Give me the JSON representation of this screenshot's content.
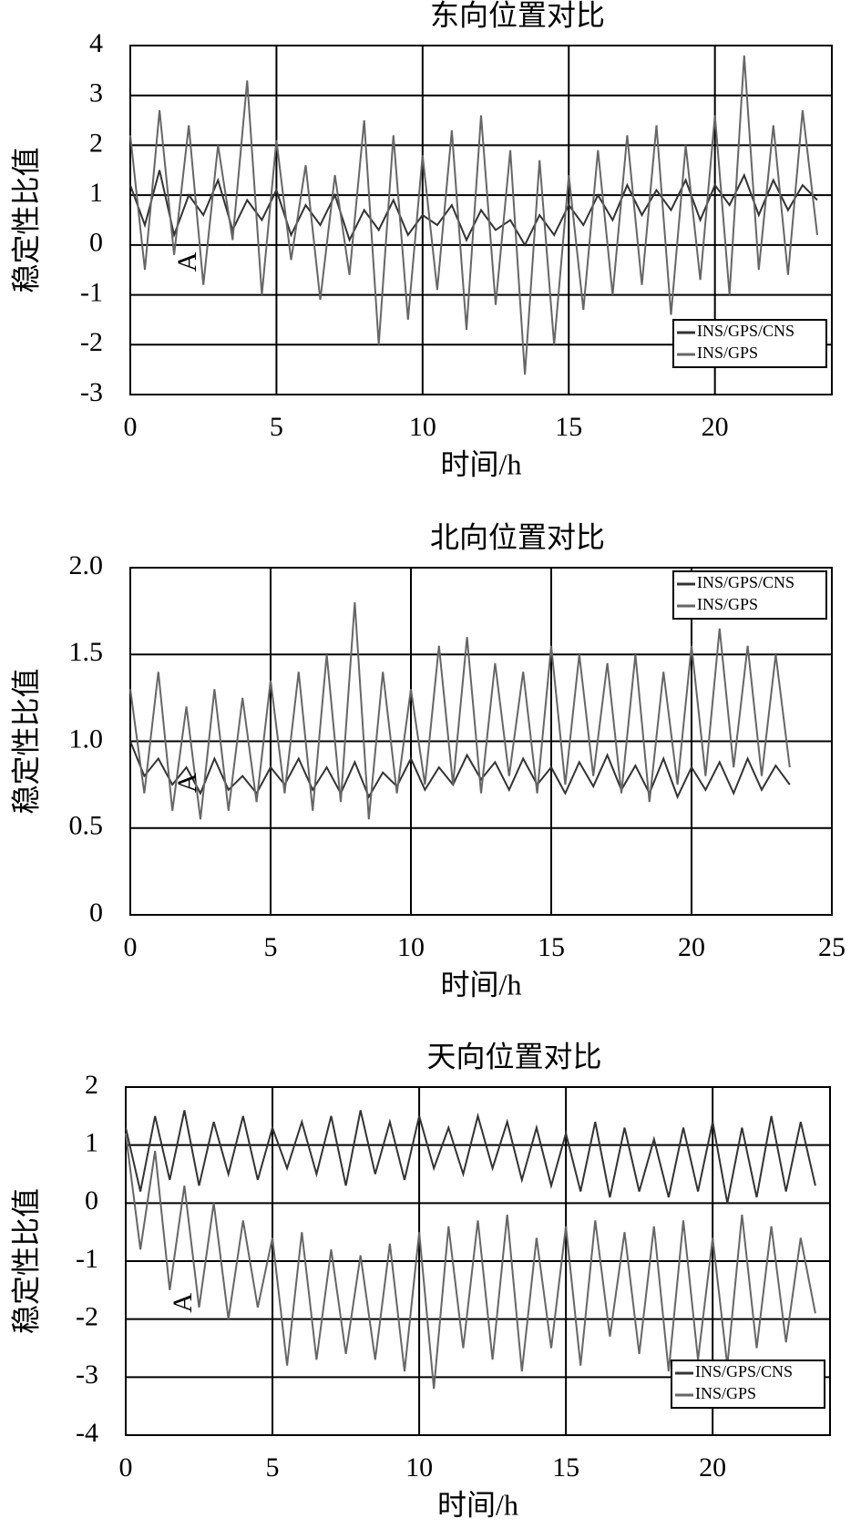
{
  "chart_data": [
    {
      "type": "line",
      "title": "东向位置对比",
      "xlabel": "时间/h",
      "ylabel": "稳定性比值",
      "annotation": "A",
      "xlim": [
        0,
        24
      ],
      "xticks": [
        0,
        5,
        10,
        15,
        20
      ],
      "ylim": [
        -3,
        4
      ],
      "yticks": [
        -3,
        -2,
        -1,
        0,
        1,
        2,
        3,
        4
      ],
      "grid": true,
      "legend": "lower right",
      "x": [
        0,
        0.5,
        1,
        1.5,
        2,
        2.5,
        3,
        3.5,
        4,
        4.5,
        5,
        5.5,
        6,
        6.5,
        7,
        7.5,
        8,
        8.5,
        9,
        9.5,
        10,
        10.5,
        11,
        11.5,
        12,
        12.5,
        13,
        13.5,
        14,
        14.5,
        15,
        15.5,
        16,
        16.5,
        17,
        17.5,
        18,
        18.5,
        19,
        19.5,
        20,
        20.5,
        21,
        21.5,
        22,
        22.5,
        23,
        23.5
      ],
      "series": [
        {
          "name": "INS/GPS/CNS",
          "color": "#333333",
          "values": [
            1.2,
            0.4,
            1.5,
            0.2,
            1.0,
            0.6,
            1.3,
            0.3,
            0.9,
            0.5,
            1.1,
            0.2,
            0.8,
            0.4,
            1.0,
            0.1,
            0.7,
            0.3,
            0.9,
            0.2,
            0.6,
            0.4,
            0.8,
            0.1,
            0.7,
            0.3,
            0.5,
            0.0,
            0.6,
            0.2,
            0.8,
            0.4,
            1.0,
            0.5,
            1.2,
            0.6,
            1.1,
            0.7,
            1.3,
            0.5,
            1.2,
            0.8,
            1.4,
            0.6,
            1.3,
            0.7,
            1.2,
            0.9
          ]
        },
        {
          "name": "INS/GPS",
          "color": "#666666",
          "values": [
            2.2,
            -0.5,
            2.7,
            -0.2,
            2.4,
            -0.8,
            2.0,
            0.1,
            3.3,
            -1.0,
            2.1,
            -0.3,
            1.6,
            -1.1,
            1.4,
            -0.6,
            2.5,
            -2.0,
            2.2,
            -1.5,
            1.8,
            -0.9,
            2.3,
            -1.7,
            2.6,
            -1.2,
            1.9,
            -2.6,
            1.7,
            -2.0,
            1.4,
            -1.3,
            1.9,
            -1.0,
            2.2,
            -0.8,
            2.4,
            -1.4,
            2.0,
            -0.7,
            2.6,
            -1.0,
            3.8,
            -0.5,
            2.4,
            -0.6,
            2.7,
            0.2
          ]
        }
      ]
    },
    {
      "type": "line",
      "title": "北向位置对比",
      "xlabel": "时间/h",
      "ylabel": "稳定性比值",
      "annotation": "A",
      "xlim": [
        0,
        25
      ],
      "xticks": [
        0,
        5,
        10,
        15,
        20,
        25
      ],
      "ylim": [
        0,
        2
      ],
      "yticks": [
        0,
        0.5,
        {
          "value": 1,
          "label": "1.0"
        },
        1.5,
        {
          "value": 2,
          "label": "2.0"
        }
      ],
      "grid": true,
      "legend": "upper right",
      "x": [
        0,
        0.5,
        1,
        1.5,
        2,
        2.5,
        3,
        3.5,
        4,
        4.5,
        5,
        5.5,
        6,
        6.5,
        7,
        7.5,
        8,
        8.5,
        9,
        9.5,
        10,
        10.5,
        11,
        11.5,
        12,
        12.5,
        13,
        13.5,
        14,
        14.5,
        15,
        15.5,
        16,
        16.5,
        17,
        17.5,
        18,
        18.5,
        19,
        19.5,
        20,
        20.5,
        21,
        21.5,
        22,
        22.5,
        23,
        23.5
      ],
      "series": [
        {
          "name": "INS/GPS/CNS",
          "color": "#333333",
          "values": [
            1.0,
            0.8,
            0.9,
            0.75,
            0.85,
            0.7,
            0.9,
            0.72,
            0.8,
            0.7,
            0.85,
            0.75,
            0.9,
            0.72,
            0.85,
            0.7,
            0.88,
            0.68,
            0.82,
            0.74,
            0.9,
            0.72,
            0.85,
            0.75,
            0.92,
            0.78,
            0.88,
            0.72,
            0.9,
            0.75,
            0.85,
            0.7,
            0.88,
            0.74,
            0.92,
            0.72,
            0.86,
            0.7,
            0.9,
            0.68,
            0.85,
            0.72,
            0.88,
            0.7,
            0.9,
            0.72,
            0.86,
            0.75
          ]
        },
        {
          "name": "INS/GPS",
          "color": "#666666",
          "values": [
            1.3,
            0.7,
            1.4,
            0.6,
            1.2,
            0.55,
            1.3,
            0.6,
            1.25,
            0.65,
            1.35,
            0.7,
            1.4,
            0.6,
            1.5,
            0.65,
            1.8,
            0.55,
            1.4,
            0.7,
            1.3,
            0.75,
            1.55,
            0.75,
            1.6,
            0.7,
            1.45,
            0.8,
            1.4,
            0.7,
            1.55,
            0.75,
            1.5,
            0.8,
            1.45,
            0.7,
            1.5,
            0.65,
            1.4,
            0.75,
            1.55,
            0.8,
            1.65,
            0.85,
            1.55,
            0.8,
            1.5,
            0.85
          ]
        }
      ]
    },
    {
      "type": "line",
      "title": "天向位置对比",
      "xlabel": "时间/h",
      "ylabel": "稳定性比值",
      "annotation": "A",
      "xlim": [
        0,
        24
      ],
      "xticks": [
        0,
        5,
        10,
        15,
        20
      ],
      "ylim": [
        -4,
        2
      ],
      "yticks": [
        -4,
        -3,
        -2,
        -1,
        0,
        1,
        2
      ],
      "grid": true,
      "legend": "lower right",
      "x": [
        0,
        0.5,
        1,
        1.5,
        2,
        2.5,
        3,
        3.5,
        4,
        4.5,
        5,
        5.5,
        6,
        6.5,
        7,
        7.5,
        8,
        8.5,
        9,
        9.5,
        10,
        10.5,
        11,
        11.5,
        12,
        12.5,
        13,
        13.5,
        14,
        14.5,
        15,
        15.5,
        16,
        16.5,
        17,
        17.5,
        18,
        18.5,
        19,
        19.5,
        20,
        20.5,
        21,
        21.5,
        22,
        22.5,
        23,
        23.5
      ],
      "series": [
        {
          "name": "INS/GPS/CNS",
          "color": "#333333",
          "values": [
            1.3,
            0.2,
            1.5,
            0.4,
            1.6,
            0.3,
            1.4,
            0.5,
            1.5,
            0.4,
            1.3,
            0.6,
            1.4,
            0.5,
            1.5,
            0.3,
            1.6,
            0.5,
            1.4,
            0.4,
            1.5,
            0.6,
            1.3,
            0.5,
            1.5,
            0.6,
            1.4,
            0.4,
            1.3,
            0.3,
            1.2,
            0.2,
            1.4,
            0.1,
            1.3,
            0.2,
            1.1,
            0.1,
            1.3,
            0.2,
            1.4,
            0.0,
            1.3,
            0.1,
            1.5,
            0.2,
            1.4,
            0.3
          ]
        },
        {
          "name": "INS/GPS",
          "color": "#666666",
          "values": [
            1.2,
            -0.8,
            0.9,
            -1.5,
            0.3,
            -1.8,
            0.0,
            -2.0,
            -0.3,
            -1.8,
            -0.6,
            -2.8,
            -0.5,
            -2.7,
            -0.8,
            -2.6,
            -0.9,
            -2.7,
            -0.7,
            -2.9,
            -0.5,
            -3.2,
            -0.4,
            -2.5,
            -0.3,
            -2.7,
            -0.2,
            -2.9,
            -0.6,
            -2.5,
            -0.4,
            -2.8,
            -0.3,
            -2.3,
            -0.5,
            -2.6,
            -0.4,
            -2.9,
            -0.3,
            -2.7,
            -0.6,
            -2.8,
            -0.2,
            -2.5,
            -0.4,
            -2.4,
            -0.6,
            -1.9
          ]
        }
      ]
    }
  ]
}
